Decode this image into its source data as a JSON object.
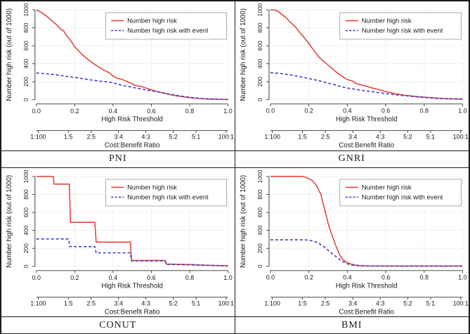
{
  "figure": {
    "kind": "clinical-impact-curves",
    "panel_titles": [
      "PNI",
      "GNRI",
      "CONUT",
      "BMI"
    ]
  },
  "axes": {
    "y_label": "Number high risk (out of 1000)",
    "y_ticks": [
      0,
      200,
      400,
      600,
      800,
      1000
    ],
    "x_label": "High Risk Threshold",
    "x_ticks": [
      "0.0",
      "0.2",
      "0.4",
      "0.6",
      "0.8",
      "1.0"
    ],
    "cb_label": "Cost:Benefit Ratio",
    "cb_ticks": [
      {
        "label": "1:100",
        "pos": 0.0099
      },
      {
        "label": "1:5",
        "pos": 0.1667
      },
      {
        "label": "2:5",
        "pos": 0.2857
      },
      {
        "label": "3:4",
        "pos": 0.4286
      },
      {
        "label": "4:3",
        "pos": 0.5714
      },
      {
        "label": "5:2",
        "pos": 0.7143
      },
      {
        "label": "5:1",
        "pos": 0.8333
      },
      {
        "label": "100:1",
        "pos": 0.9901
      }
    ]
  },
  "legend": {
    "entries": [
      {
        "label": "Number high risk",
        "style": "solid",
        "color": "#e2463f"
      },
      {
        "label": "Number high risk with event",
        "style": "dashed",
        "color": "#3d3dcd"
      }
    ]
  },
  "colors": {
    "red": "#e2463f",
    "blue": "#3d3dcd",
    "grid": "#ececec",
    "axis": "#333333",
    "legend_border": "#999999"
  },
  "chart_data": [
    {
      "type": "line",
      "title": "PNI",
      "xlabel": "High Risk Threshold",
      "ylabel": "Number high risk (out of 1000)",
      "x2label": "Cost:Benefit Ratio",
      "xlim": [
        0,
        1
      ],
      "ylim": [
        0,
        1000
      ],
      "series": [
        {
          "name": "Number high risk",
          "color": "red",
          "style": "solid",
          "points": [
            [
              0,
              1000
            ],
            [
              0.02,
              980
            ],
            [
              0.05,
              935
            ],
            [
              0.08,
              880
            ],
            [
              0.1,
              845
            ],
            [
              0.12,
              800
            ],
            [
              0.13,
              778
            ],
            [
              0.14,
              772
            ],
            [
              0.16,
              705
            ],
            [
              0.18,
              655
            ],
            [
              0.2,
              590
            ],
            [
              0.22,
              545
            ],
            [
              0.24,
              500
            ],
            [
              0.26,
              465
            ],
            [
              0.28,
              430
            ],
            [
              0.3,
              400
            ],
            [
              0.32,
              370
            ],
            [
              0.34,
              345
            ],
            [
              0.36,
              320
            ],
            [
              0.38,
              300
            ],
            [
              0.4,
              265
            ],
            [
              0.42,
              240
            ],
            [
              0.44,
              230
            ],
            [
              0.46,
              215
            ],
            [
              0.48,
              195
            ],
            [
              0.5,
              178
            ],
            [
              0.51,
              163
            ],
            [
              0.53,
              152
            ],
            [
              0.55,
              147
            ],
            [
              0.57,
              130
            ],
            [
              0.6,
              110
            ],
            [
              0.63,
              90
            ],
            [
              0.66,
              75
            ],
            [
              0.7,
              55
            ],
            [
              0.74,
              40
            ],
            [
              0.78,
              28
            ],
            [
              0.82,
              18
            ],
            [
              0.86,
              12
            ],
            [
              0.9,
              8
            ],
            [
              0.95,
              5
            ],
            [
              1.0,
              4
            ]
          ]
        },
        {
          "name": "Number high risk with event",
          "color": "blue",
          "style": "dashed",
          "points": [
            [
              0,
              297
            ],
            [
              0.05,
              290
            ],
            [
              0.1,
              278
            ],
            [
              0.15,
              262
            ],
            [
              0.2,
              248
            ],
            [
              0.25,
              232
            ],
            [
              0.3,
              215
            ],
            [
              0.35,
              202
            ],
            [
              0.38,
              195
            ],
            [
              0.4,
              188
            ],
            [
              0.43,
              170
            ],
            [
              0.46,
              155
            ],
            [
              0.5,
              138
            ],
            [
              0.54,
              122
            ],
            [
              0.58,
              105
            ],
            [
              0.62,
              92
            ],
            [
              0.66,
              76
            ],
            [
              0.7,
              60
            ],
            [
              0.74,
              45
            ],
            [
              0.78,
              32
            ],
            [
              0.82,
              22
            ],
            [
              0.86,
              14
            ],
            [
              0.9,
              9
            ],
            [
              0.95,
              5
            ],
            [
              1.0,
              3
            ]
          ]
        }
      ]
    },
    {
      "type": "line",
      "title": "GNRI",
      "xlabel": "High Risk Threshold",
      "ylabel": "Number high risk (out of 1000)",
      "x2label": "Cost:Benefit Ratio",
      "xlim": [
        0,
        1
      ],
      "ylim": [
        0,
        1000
      ],
      "series": [
        {
          "name": "Number high risk",
          "color": "red",
          "style": "solid",
          "points": [
            [
              0,
              1000
            ],
            [
              0.03,
              995
            ],
            [
              0.05,
              965
            ],
            [
              0.08,
              915
            ],
            [
              0.1,
              870
            ],
            [
              0.13,
              810
            ],
            [
              0.15,
              755
            ],
            [
              0.17,
              705
            ],
            [
              0.2,
              625
            ],
            [
              0.22,
              565
            ],
            [
              0.25,
              480
            ],
            [
              0.27,
              440
            ],
            [
              0.3,
              385
            ],
            [
              0.33,
              330
            ],
            [
              0.35,
              295
            ],
            [
              0.38,
              250
            ],
            [
              0.4,
              225
            ],
            [
              0.43,
              205
            ],
            [
              0.44,
              185
            ],
            [
              0.47,
              165
            ],
            [
              0.5,
              150
            ],
            [
              0.53,
              130
            ],
            [
              0.56,
              115
            ],
            [
              0.6,
              90
            ],
            [
              0.64,
              70
            ],
            [
              0.68,
              55
            ],
            [
              0.72,
              45
            ],
            [
              0.76,
              35
            ],
            [
              0.8,
              28
            ],
            [
              0.85,
              20
            ],
            [
              0.9,
              14
            ],
            [
              0.95,
              10
            ],
            [
              1.0,
              8
            ]
          ]
        },
        {
          "name": "Number high risk with event",
          "color": "blue",
          "style": "dashed",
          "points": [
            [
              0,
              300
            ],
            [
              0.05,
              293
            ],
            [
              0.1,
              278
            ],
            [
              0.15,
              258
            ],
            [
              0.2,
              235
            ],
            [
              0.25,
              213
            ],
            [
              0.28,
              195
            ],
            [
              0.3,
              185
            ],
            [
              0.33,
              168
            ],
            [
              0.36,
              150
            ],
            [
              0.4,
              130
            ],
            [
              0.44,
              116
            ],
            [
              0.48,
              103
            ],
            [
              0.52,
              92
            ],
            [
              0.56,
              80
            ],
            [
              0.6,
              68
            ],
            [
              0.64,
              57
            ],
            [
              0.68,
              48
            ],
            [
              0.72,
              40
            ],
            [
              0.76,
              32
            ],
            [
              0.8,
              25
            ],
            [
              0.85,
              17
            ],
            [
              0.9,
              11
            ],
            [
              0.95,
              8
            ],
            [
              1.0,
              6
            ]
          ]
        }
      ]
    },
    {
      "type": "line",
      "title": "CONUT",
      "xlabel": "High Risk Threshold",
      "ylabel": "Number high risk (out of 1000)",
      "x2label": "Cost:Benefit Ratio",
      "xlim": [
        0,
        1
      ],
      "ylim": [
        0,
        1000
      ],
      "series": [
        {
          "name": "Number high risk",
          "color": "red",
          "style": "solid",
          "points": [
            [
              0,
              1000
            ],
            [
              0.088,
              1000
            ],
            [
              0.092,
              915
            ],
            [
              0.172,
              915
            ],
            [
              0.178,
              490
            ],
            [
              0.305,
              490
            ],
            [
              0.312,
              270
            ],
            [
              0.49,
              270
            ],
            [
              0.497,
              65
            ],
            [
              0.672,
              65
            ],
            [
              0.678,
              25
            ],
            [
              0.8,
              20
            ],
            [
              0.9,
              12
            ],
            [
              1.0,
              6
            ]
          ]
        },
        {
          "name": "Number high risk with event",
          "color": "blue",
          "style": "dashed",
          "points": [
            [
              0,
              305
            ],
            [
              0.168,
              305
            ],
            [
              0.174,
              220
            ],
            [
              0.305,
              220
            ],
            [
              0.312,
              150
            ],
            [
              0.49,
              150
            ],
            [
              0.497,
              60
            ],
            [
              0.672,
              60
            ],
            [
              0.678,
              22
            ],
            [
              0.8,
              17
            ],
            [
              0.9,
              10
            ],
            [
              1.0,
              5
            ]
          ]
        }
      ]
    },
    {
      "type": "line",
      "title": "BMI",
      "xlabel": "High Risk Threshold",
      "ylabel": "Number high risk (out of 1000)",
      "x2label": "Cost:Benefit Ratio",
      "xlim": [
        0,
        1
      ],
      "ylim": [
        0,
        1000
      ],
      "series": [
        {
          "name": "Number high risk",
          "color": "red",
          "style": "solid",
          "points": [
            [
              0,
              1000
            ],
            [
              0.16,
              1000
            ],
            [
              0.18,
              995
            ],
            [
              0.2,
              975
            ],
            [
              0.21,
              965
            ],
            [
              0.22,
              950
            ],
            [
              0.24,
              900
            ],
            [
              0.25,
              855
            ],
            [
              0.255,
              830
            ],
            [
              0.262,
              808
            ],
            [
              0.27,
              730
            ],
            [
              0.28,
              650
            ],
            [
              0.29,
              565
            ],
            [
              0.3,
              480
            ],
            [
              0.31,
              410
            ],
            [
              0.32,
              350
            ],
            [
              0.33,
              290
            ],
            [
              0.34,
              230
            ],
            [
              0.35,
              180
            ],
            [
              0.36,
              130
            ],
            [
              0.37,
              95
            ],
            [
              0.38,
              70
            ],
            [
              0.39,
              55
            ],
            [
              0.4,
              40
            ],
            [
              0.42,
              25
            ],
            [
              0.44,
              15
            ],
            [
              0.47,
              8
            ],
            [
              0.5,
              5
            ],
            [
              0.6,
              4
            ],
            [
              0.7,
              4
            ],
            [
              0.8,
              4
            ],
            [
              0.9,
              4
            ],
            [
              1.0,
              4
            ]
          ]
        },
        {
          "name": "Number high risk with event",
          "color": "blue",
          "style": "dashed",
          "points": [
            [
              0,
              295
            ],
            [
              0.18,
              295
            ],
            [
              0.2,
              290
            ],
            [
              0.22,
              283
            ],
            [
              0.24,
              268
            ],
            [
              0.26,
              245
            ],
            [
              0.28,
              215
            ],
            [
              0.3,
              180
            ],
            [
              0.32,
              145
            ],
            [
              0.34,
              110
            ],
            [
              0.36,
              78
            ],
            [
              0.38,
              48
            ],
            [
              0.4,
              28
            ],
            [
              0.42,
              16
            ],
            [
              0.45,
              8
            ],
            [
              0.5,
              4
            ],
            [
              0.6,
              3
            ],
            [
              0.7,
              3
            ],
            [
              0.8,
              3
            ],
            [
              0.9,
              3
            ],
            [
              1.0,
              3
            ]
          ]
        }
      ]
    }
  ]
}
